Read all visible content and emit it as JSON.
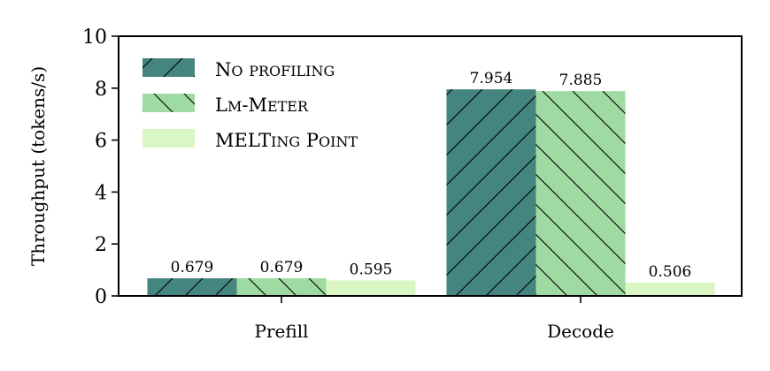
{
  "chart_data": {
    "type": "bar",
    "categories": [
      "Prefill",
      "Decode"
    ],
    "series": [
      {
        "name": "No profiling",
        "values": [
          0.679,
          7.954
        ],
        "labels": [
          "0.679",
          "7.954"
        ],
        "color": "#45857f",
        "hatch": "forward"
      },
      {
        "name": "Lm-Meter",
        "values": [
          0.679,
          7.885
        ],
        "labels": [
          "0.679",
          "7.885"
        ],
        "color": "#9edaa2",
        "hatch": "backward"
      },
      {
        "name": "MELTing Point",
        "values": [
          0.595,
          0.506
        ],
        "labels": [
          "0.595",
          "0.506"
        ],
        "color": "#daf6c2",
        "hatch": "none"
      }
    ],
    "ylabel": "Throughput (tokens/s)",
    "xlabel": "",
    "ylim": [
      0,
      10
    ],
    "yticks": [
      0,
      2,
      4,
      6,
      8,
      10
    ],
    "grid": false,
    "legend_position": "top-left"
  }
}
